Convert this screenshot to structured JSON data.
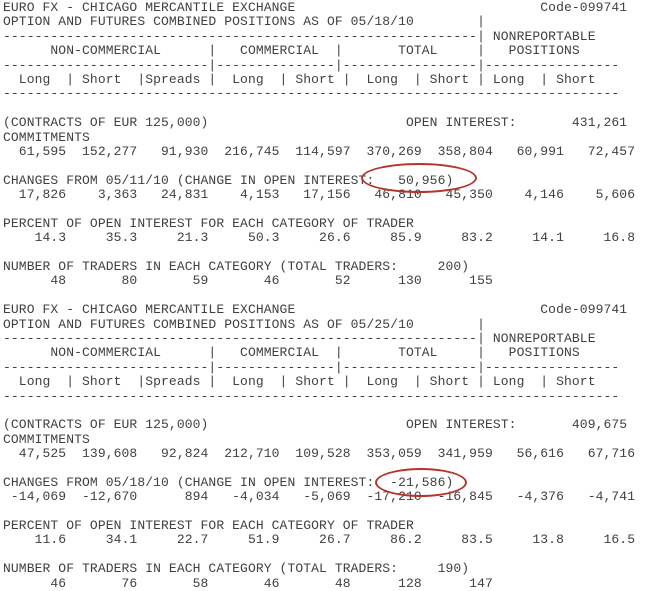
{
  "colors": {
    "background": "#ffffff",
    "text": "#404040",
    "annotation_red": "#b5352c"
  },
  "report": {
    "sections": [
      {
        "exchange": "EURO FX - CHICAGO MERCANTILE EXCHANGE",
        "code": "Code-099741",
        "positions_line": "OPTION AND FUTURES COMBINED POSITIONS AS OF 05/18/10",
        "as_of_date": "05/18/10",
        "nonreportable_label": "NONREPORTABLE",
        "positions_label": "POSITIONS",
        "column_groups": [
          "NON-COMMERCIAL",
          "COMMERCIAL",
          "TOTAL"
        ],
        "column_headers": [
          "Long",
          "Short",
          "Spreads",
          "Long",
          "Short",
          "Long",
          "Short",
          "Long",
          "Short"
        ],
        "contracts_label": "(CONTRACTS OF EUR 125,000)",
        "open_interest_label": "OPEN INTEREST:",
        "open_interest": "431,261",
        "commitments_label": "COMMITMENTS",
        "commitments": [
          "61,595",
          "152,277",
          "91,930",
          "216,745",
          "114,597",
          "370,269",
          "358,804",
          "60,991",
          "72,457"
        ],
        "changes_label": "CHANGES FROM 05/11/10 (CHANGE IN OPEN INTEREST:",
        "change_in_open_interest": "50,956)",
        "changes": [
          "17,826",
          "3,363",
          "24,831",
          "4,153",
          "17,156",
          "46,810",
          "45,350",
          "4,146",
          "5,606"
        ],
        "percent_label": "PERCENT OF OPEN INTEREST FOR EACH CATEGORY OF TRADER",
        "percents": [
          "14.3",
          "35.3",
          "21.3",
          "50.3",
          "26.6",
          "85.9",
          "83.2",
          "14.1",
          "16.8"
        ],
        "traders_label": "NUMBER OF TRADERS IN EACH CATEGORY (TOTAL TRADERS:",
        "total_traders": "200)",
        "traders": [
          "48",
          "80",
          "59",
          "46",
          "52",
          "130",
          "155"
        ]
      },
      {
        "exchange": "EURO FX - CHICAGO MERCANTILE EXCHANGE",
        "code": "Code-099741",
        "positions_line": "OPTION AND FUTURES COMBINED POSITIONS AS OF 05/25/10",
        "as_of_date": "05/25/10",
        "nonreportable_label": "NONREPORTABLE",
        "positions_label": "POSITIONS",
        "column_groups": [
          "NON-COMMERCIAL",
          "COMMERCIAL",
          "TOTAL"
        ],
        "column_headers": [
          "Long",
          "Short",
          "Spreads",
          "Long",
          "Short",
          "Long",
          "Short",
          "Long",
          "Short"
        ],
        "contracts_label": "(CONTRACTS OF EUR 125,000)",
        "open_interest_label": "OPEN INTEREST:",
        "open_interest": "409,675",
        "commitments_label": "COMMITMENTS",
        "commitments": [
          "47,525",
          "139,608",
          "92,824",
          "212,710",
          "109,528",
          "353,059",
          "341,959",
          "56,616",
          "67,716"
        ],
        "changes_label": "CHANGES FROM 05/18/10 (CHANGE IN OPEN INTEREST:",
        "change_in_open_interest": "-21,586)",
        "changes": [
          "-14,069",
          "-12,670",
          "894",
          "-4,034",
          "-5,069",
          "-17,210",
          "-16,845",
          "-4,376",
          "-4,741"
        ],
        "percent_label": "PERCENT OF OPEN INTEREST FOR EACH CATEGORY OF TRADER",
        "percents": [
          "11.6",
          "34.1",
          "22.7",
          "51.9",
          "26.7",
          "86.2",
          "83.5",
          "13.8",
          "16.5"
        ],
        "traders_label": "NUMBER OF TRADERS IN EACH CATEGORY (TOTAL TRADERS:",
        "total_traders": "190)",
        "traders": [
          "46",
          "76",
          "58",
          "46",
          "48",
          "128",
          "147"
        ]
      }
    ],
    "annotations": [
      {
        "shape": "ellipse",
        "circled_text": "50,956)"
      },
      {
        "shape": "ellipse",
        "circled_text": "-21,586)"
      }
    ],
    "lines": [
      "EURO FX - CHICAGO MERCANTILE EXCHANGE                               Code-099741",
      "OPTION AND FUTURES COMBINED POSITIONS AS OF 05/18/10        |",
      "------------------------------------------------------------| NONREPORTABLE",
      "      NON-COMMERCIAL      |   COMMERCIAL  |       TOTAL     |   POSITIONS",
      "--------------------------|---------------|-----------------|-----------------",
      "  Long  | Short  |Spreads |  Long  | Short |  Long  | Short | Long  | Short",
      "------------------------------------------------------------------------------",
      "",
      "(CONTRACTS OF EUR 125,000)                         OPEN INTEREST:       431,261",
      "COMMITMENTS",
      "  61,595  152,277   91,930  216,745  114,597  370,269  358,804   60,991   72,457",
      "",
      "CHANGES FROM 05/11/10 (CHANGE IN OPEN INTEREST:   50,956)",
      "  17,826    3,363   24,831    4,153   17,156   46,810   45,350    4,146    5,606",
      "",
      "PERCENT OF OPEN INTEREST FOR EACH CATEGORY OF TRADER",
      "    14.3     35.3     21.3     50.3     26.6     85.9     83.2     14.1     16.8",
      "",
      "NUMBER OF TRADERS IN EACH CATEGORY (TOTAL TRADERS:     200)",
      "      48       80       59       46       52      130      155",
      "",
      "EURO FX - CHICAGO MERCANTILE EXCHANGE                               Code-099741",
      "OPTION AND FUTURES COMBINED POSITIONS AS OF 05/25/10        |",
      "------------------------------------------------------------| NONREPORTABLE",
      "      NON-COMMERCIAL      |   COMMERCIAL  |       TOTAL     |   POSITIONS",
      "--------------------------|---------------|-----------------|-----------------",
      "  Long  | Short  |Spreads |  Long  | Short |  Long  | Short | Long  | Short",
      "------------------------------------------------------------------------------",
      "",
      "(CONTRACTS OF EUR 125,000)                         OPEN INTEREST:       409,675",
      "COMMITMENTS",
      "  47,525  139,608   92,824  212,710  109,528  353,059  341,959   56,616   67,716",
      "",
      "CHANGES FROM 05/18/10 (CHANGE IN OPEN INTEREST:  -21,586)",
      " -14,069  -12,670      894   -4,034   -5,069  -17,210  -16,845   -4,376   -4,741",
      "",
      "PERCENT OF OPEN INTEREST FOR EACH CATEGORY OF TRADER",
      "    11.6     34.1     22.7     51.9     26.7     86.2     83.5     13.8     16.5",
      "",
      "NUMBER OF TRADERS IN EACH CATEGORY (TOTAL TRADERS:     190)",
      "      46       76       58       46       48      128      147"
    ]
  }
}
